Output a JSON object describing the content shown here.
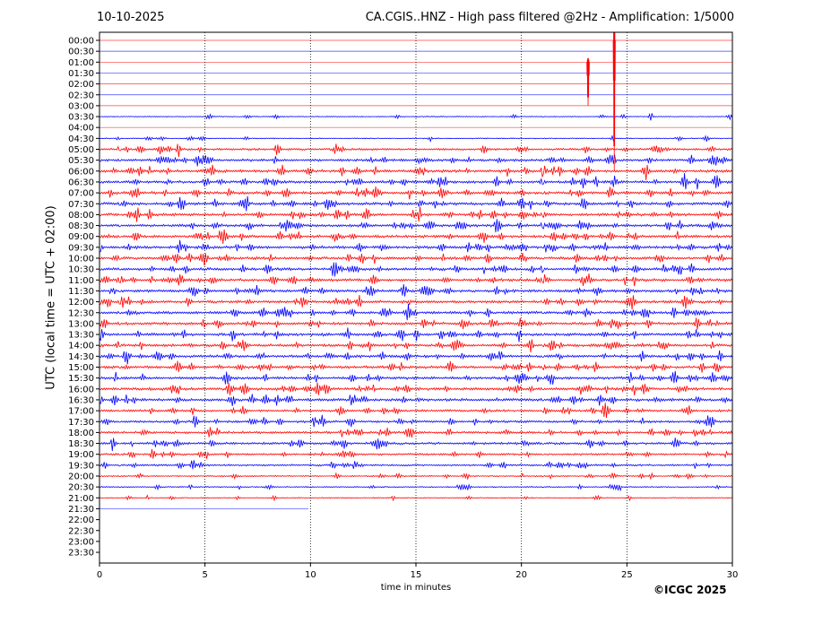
{
  "header": {
    "date": "10-10-2025",
    "title": "CA.CGIS..HNZ - High pass filtered @2Hz - Amplification: 1/5000"
  },
  "footer": {
    "copyright": "©ICGC 2025"
  },
  "chart_data": {
    "type": "line",
    "title": "CA.CGIS..HNZ - High pass filtered @2Hz - Amplification: 1/5000",
    "xlabel": "time in minutes",
    "ylabel": "UTC (local time = UTC + 02:00)",
    "xlim": [
      0,
      30
    ],
    "x_ticks": [
      0,
      5,
      10,
      15,
      20,
      25,
      30
    ],
    "grid": "vertical dotted lines at 5-minute ticks",
    "row_colors": [
      "#ff0000",
      "#0000ff"
    ],
    "rows": [
      "00:00",
      "00:30",
      "01:00",
      "01:30",
      "02:00",
      "02:30",
      "03:00",
      "03:30",
      "04:00",
      "04:30",
      "05:00",
      "05:30",
      "06:00",
      "06:30",
      "07:00",
      "07:30",
      "08:00",
      "08:30",
      "09:00",
      "09:30",
      "10:00",
      "10:30",
      "11:00",
      "11:30",
      "12:00",
      "12:30",
      "13:00",
      "13:30",
      "14:00",
      "14:30",
      "15:00",
      "15:30",
      "16:00",
      "16:30",
      "17:00",
      "17:30",
      "18:00",
      "18:30",
      "19:00",
      "19:30",
      "20:00",
      "20:30",
      "21:00",
      "21:30",
      "22:00",
      "22:30",
      "23:00",
      "23:30"
    ],
    "noise_level": [
      0.3,
      0.3,
      0.3,
      0.3,
      0.3,
      0.3,
      0.35,
      0.4,
      0.35,
      0.4,
      0.9,
      1.1,
      1.2,
      1.2,
      1.2,
      1.2,
      1.2,
      1.2,
      1.2,
      1.2,
      1.2,
      1.2,
      1.2,
      1.2,
      1.2,
      1.2,
      1.2,
      1.2,
      1.2,
      1.2,
      1.2,
      1.2,
      1.2,
      1.2,
      1.0,
      1.0,
      1.0,
      1.0,
      0.9,
      0.8,
      0.6,
      0.5,
      0.4,
      0.3,
      0,
      0,
      0,
      0
    ],
    "data_end_minutes": [
      30,
      30,
      30,
      30,
      30,
      30,
      30,
      30,
      30,
      30,
      30,
      30,
      30,
      30,
      30,
      30,
      30,
      30,
      30,
      30,
      30,
      30,
      30,
      30,
      30,
      30,
      30,
      30,
      30,
      30,
      30,
      30,
      30,
      30,
      30,
      30,
      30,
      30,
      30,
      30,
      30,
      30,
      30,
      9.9,
      0,
      0,
      0,
      0
    ],
    "events": [
      {
        "row": "01:00",
        "start_minute": 23.1,
        "duration_minutes": 0.12,
        "amplitude_rows": 4.0
      },
      {
        "row": "00:00",
        "start_minute": 24.35,
        "duration_minutes": 0.1,
        "amplitude_rows": 12.0
      }
    ]
  }
}
